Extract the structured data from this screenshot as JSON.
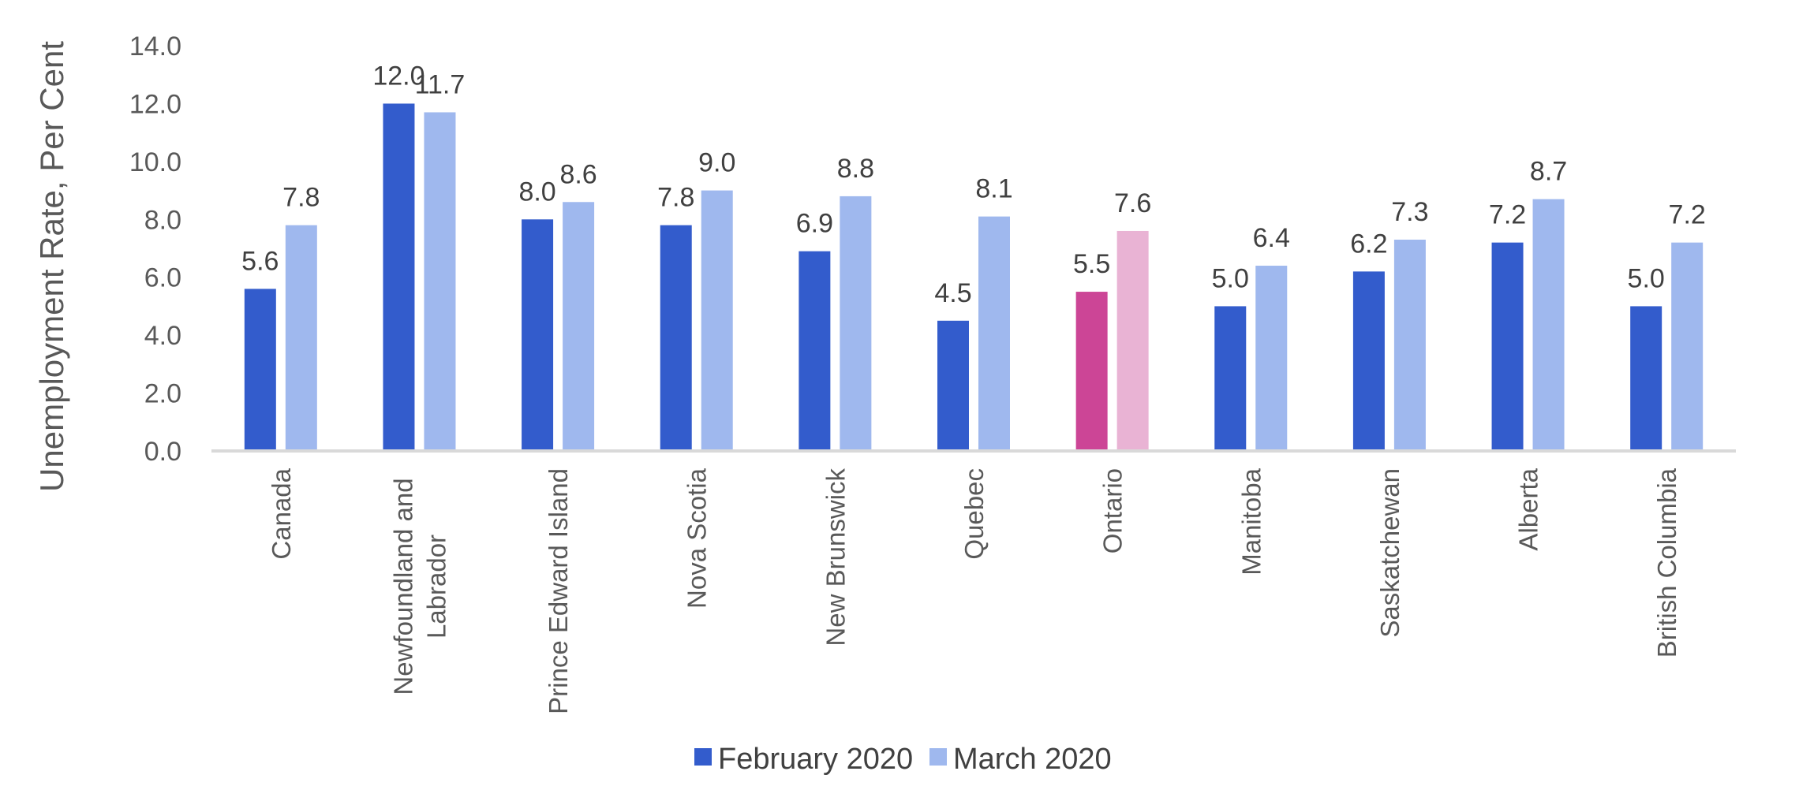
{
  "chart_data": {
    "type": "bar",
    "title": "",
    "xlabel": "",
    "ylabel": "Unemployment Rate, Per Cent",
    "ylim": [
      0,
      14
    ],
    "yticks": [
      "0.0",
      "2.0",
      "4.0",
      "6.0",
      "8.0",
      "10.0",
      "12.0",
      "14.0"
    ],
    "grid": false,
    "legend_position": "bottom",
    "categories": [
      [
        "Canada"
      ],
      [
        "Newfoundland and",
        "Labrador"
      ],
      [
        "Prince Edward Island"
      ],
      [
        "Nova Scotia"
      ],
      [
        "New Brunswick"
      ],
      [
        "Quebec"
      ],
      [
        "Ontario"
      ],
      [
        "Manitoba"
      ],
      [
        "Saskatchewan"
      ],
      [
        "Alberta"
      ],
      [
        "British Columbia"
      ]
    ],
    "series": [
      {
        "name": "February 2020",
        "color": "#335CCC",
        "values": [
          5.6,
          12.0,
          8.0,
          7.8,
          6.9,
          4.5,
          5.5,
          5.0,
          6.2,
          7.2,
          5.0
        ],
        "labels": [
          "5.6",
          "12.0",
          "8.0",
          "7.8",
          "6.9",
          "4.5",
          "5.5",
          "5.0",
          "6.2",
          "7.2",
          "5.0"
        ]
      },
      {
        "name": "March 2020",
        "color": "#9FB8EE",
        "values": [
          7.8,
          11.7,
          8.6,
          9.0,
          8.8,
          8.1,
          7.6,
          6.4,
          7.3,
          8.7,
          7.2
        ],
        "labels": [
          "7.8",
          "11.7",
          "8.6",
          "9.0",
          "8.8",
          "8.1",
          "7.6",
          "6.4",
          "7.3",
          "8.7",
          "7.2"
        ]
      }
    ],
    "highlight": {
      "category_index": 6,
      "colors": [
        "#CC4596",
        "#E9B3D4"
      ]
    },
    "axis_color": "#D9D9D9"
  }
}
